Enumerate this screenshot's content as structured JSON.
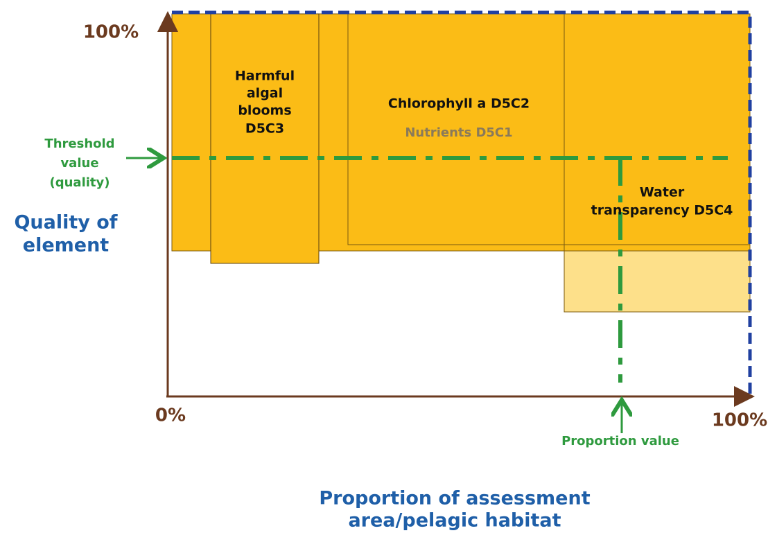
{
  "axes": {
    "y_top": "100%",
    "origin": "0%",
    "x_right": "100%",
    "y_title": [
      "Quality of",
      "element"
    ],
    "x_title": [
      "Proportion of assessment",
      "area/pelagic habitat"
    ]
  },
  "boxes": [
    {
      "label": [
        "Harmful",
        "algal",
        "blooms",
        "D5C3"
      ]
    },
    {
      "label": [
        "Chlorophyll a D5C2"
      ],
      "sublabel": "Nutrients D5C1"
    },
    {
      "label": [
        "Water",
        "transparency D5C4"
      ]
    }
  ],
  "threshold": [
    "Threshold",
    "value",
    "(quality)"
  ],
  "proportion": "Proportion value"
}
